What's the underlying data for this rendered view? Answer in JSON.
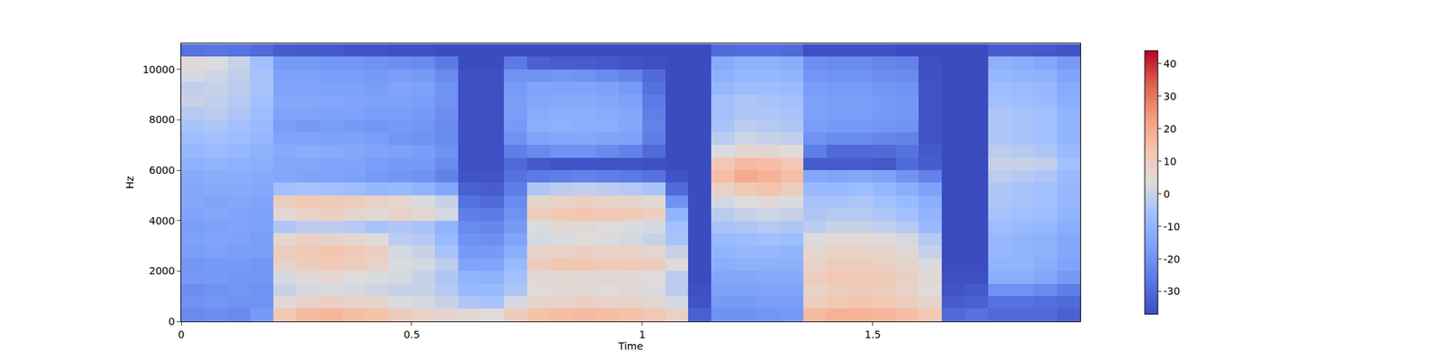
{
  "chart_data": {
    "type": "heatmap",
    "x_label": "Time",
    "y_label": "Hz",
    "xlim": [
      0,
      1.95
    ],
    "ylim": [
      0,
      11025
    ],
    "xticks": [
      0,
      0.5,
      1,
      1.5
    ],
    "yticks": [
      0,
      2000,
      4000,
      6000,
      8000,
      10000
    ],
    "x": [
      0.025,
      0.075,
      0.125,
      0.175,
      0.225,
      0.275,
      0.325,
      0.375,
      0.425,
      0.475,
      0.525,
      0.575,
      0.625,
      0.675,
      0.725,
      0.775,
      0.825,
      0.875,
      0.925,
      0.975,
      1.025,
      1.075,
      1.125,
      1.175,
      1.225,
      1.275,
      1.325,
      1.375,
      1.425,
      1.475,
      1.525,
      1.575,
      1.625,
      1.675,
      1.725,
      1.775,
      1.825,
      1.875,
      1.925
    ],
    "y": [
      250,
      750,
      1250,
      1750,
      2250,
      2750,
      3250,
      3750,
      4250,
      4750,
      5250,
      5750,
      6250,
      6750,
      7250,
      7750,
      8250,
      8750,
      9250,
      9750,
      10250,
      10750
    ],
    "cells": [
      [
        -22,
        -20,
        -21,
        -18,
        -19,
        -17,
        -16,
        -17,
        -15,
        -14,
        -14,
        -13,
        -11,
        -9,
        -7,
        -5,
        -3,
        0,
        -1,
        2,
        5,
        -28
      ],
      [
        -21,
        -19,
        -20,
        -18,
        -18,
        -16,
        -15,
        -16,
        -14,
        -15,
        -13,
        -12,
        -10,
        -8,
        -6,
        -4,
        -2,
        -1,
        0,
        1,
        3,
        -27
      ],
      [
        -22,
        -20,
        -19,
        -19,
        -18,
        -17,
        -16,
        -15,
        -15,
        -14,
        -13,
        -12,
        -11,
        -9,
        -7,
        -6,
        -4,
        -3,
        -2,
        -1,
        0,
        -28
      ],
      [
        -18,
        -20,
        -20,
        -19,
        -19,
        -17,
        -17,
        -16,
        -16,
        -15,
        -14,
        -13,
        -12,
        -11,
        -9,
        -8,
        -7,
        -6,
        -5,
        -5,
        -6,
        -30
      ],
      [
        12,
        5,
        0,
        2,
        8,
        10,
        6,
        -4,
        5,
        10,
        -6,
        -14,
        -14,
        -13,
        -15,
        -17,
        -15,
        -14,
        -15,
        -16,
        -18,
        -33
      ],
      [
        16,
        8,
        2,
        5,
        10,
        12,
        8,
        -2,
        8,
        12,
        -5,
        -15,
        -14,
        -12,
        -15,
        -18,
        -15,
        -14,
        -15,
        -16,
        -18,
        -34
      ],
      [
        17,
        9,
        3,
        6,
        11,
        13,
        7,
        -2,
        9,
        11,
        -6,
        -15,
        -15,
        -13,
        -16,
        -17,
        -16,
        -14,
        -16,
        -17,
        -19,
        -34
      ],
      [
        15,
        8,
        2,
        4,
        10,
        11,
        6,
        -3,
        7,
        10,
        -7,
        -16,
        -15,
        -14,
        -16,
        -18,
        -16,
        -15,
        -16,
        -17,
        -19,
        -35
      ],
      [
        14,
        7,
        1,
        3,
        8,
        9,
        4,
        -5,
        5,
        8,
        -9,
        -18,
        -17,
        -15,
        -17,
        -19,
        -17,
        -16,
        -17,
        -18,
        -20,
        -35
      ],
      [
        10,
        3,
        0,
        2,
        3,
        2,
        -2,
        -4,
        8,
        6,
        -8,
        -19,
        -18,
        -16,
        -19,
        -18,
        -17,
        -16,
        -15,
        -17,
        -21,
        -36
      ],
      [
        8,
        2,
        0,
        0,
        2,
        0,
        -3,
        -5,
        6,
        3,
        -10,
        -20,
        -18,
        -17,
        -20,
        -19,
        -18,
        -17,
        -16,
        -18,
        -22,
        -36
      ],
      [
        6,
        0,
        -3,
        -4,
        -2,
        -5,
        -8,
        -10,
        2,
        0,
        -14,
        -24,
        -22,
        -20,
        -22,
        -22,
        -21,
        -20,
        -20,
        -22,
        -26,
        -37
      ],
      [
        5,
        -4,
        -8,
        -10,
        -15,
        -18,
        -20,
        -22,
        -25,
        -28,
        -32,
        -35,
        -36,
        -36,
        -36,
        -36,
        -36,
        -36,
        -36,
        -36,
        -37,
        -37
      ],
      [
        4,
        -5,
        -8,
        -11,
        -15,
        -18,
        -21,
        -23,
        -26,
        -30,
        -33,
        -35,
        -36,
        -36,
        -36,
        -36,
        -36,
        -36,
        -36,
        -36,
        -37,
        -37
      ],
      [
        10,
        2,
        -4,
        -6,
        -8,
        -12,
        -15,
        -18,
        -20,
        -22,
        -25,
        -28,
        -30,
        -25,
        -20,
        -18,
        -17,
        -17,
        -18,
        -20,
        -26,
        -37
      ],
      [
        14,
        7,
        4,
        5,
        10,
        7,
        2,
        3,
        10,
        7,
        -4,
        -26,
        -34,
        -22,
        -15,
        -12,
        -13,
        -14,
        -15,
        -20,
        -32,
        -37
      ],
      [
        15,
        8,
        5,
        6,
        12,
        8,
        3,
        5,
        12,
        8,
        -2,
        -25,
        -35,
        -20,
        -14,
        -11,
        -12,
        -13,
        -15,
        -19,
        -33,
        -37
      ],
      [
        16,
        9,
        5,
        5,
        12,
        9,
        4,
        5,
        13,
        9,
        -1,
        -24,
        -35,
        -20,
        -14,
        -12,
        -12,
        -13,
        -15,
        -20,
        -33,
        -37
      ],
      [
        15,
        8,
        4,
        6,
        11,
        8,
        3,
        4,
        12,
        8,
        -2,
        -25,
        -35,
        -22,
        -15,
        -12,
        -13,
        -14,
        -16,
        -22,
        -34,
        -37
      ],
      [
        14,
        8,
        5,
        5,
        11,
        8,
        2,
        3,
        11,
        7,
        -3,
        -26,
        -35,
        -24,
        -16,
        -14,
        -14,
        -16,
        -18,
        -24,
        -35,
        -37
      ],
      [
        12,
        6,
        3,
        4,
        10,
        6,
        0,
        2,
        9,
        5,
        -5,
        -28,
        -36,
        -30,
        -25,
        -24,
        -25,
        -26,
        -28,
        -30,
        -36,
        -37
      ],
      [
        8,
        2,
        -2,
        -2,
        4,
        0,
        -5,
        -6,
        -10,
        -20,
        -30,
        -35,
        -37,
        -37,
        -37,
        -37,
        -37,
        -37,
        -37,
        -37,
        -37,
        -37
      ],
      [
        -32,
        -35,
        -36,
        -37,
        -37,
        -37,
        -37,
        -37,
        -37,
        -37,
        -37,
        -37,
        -37,
        -37,
        -37,
        -37,
        -37,
        -37,
        -37,
        -37,
        -37,
        -37
      ],
      [
        -20,
        -18,
        -16,
        -14,
        -12,
        -10,
        -8,
        -5,
        -2,
        2,
        8,
        15,
        12,
        3,
        -2,
        -5,
        -6,
        -6,
        -9,
        -11,
        -13,
        -30
      ],
      [
        -20,
        -18,
        -16,
        -14,
        -11,
        -9,
        -7,
        -4,
        0,
        4,
        12,
        20,
        16,
        6,
        1,
        -2,
        -4,
        -4,
        -7,
        -9,
        -11,
        -29
      ],
      [
        -19,
        -17,
        -15,
        -13,
        -11,
        -9,
        -6,
        -3,
        1,
        5,
        14,
        18,
        15,
        6,
        0,
        -3,
        -4,
        -5,
        -7,
        -9,
        -11,
        -29
      ],
      [
        -18,
        -17,
        -15,
        -13,
        -11,
        -10,
        -7,
        -4,
        0,
        3,
        10,
        15,
        12,
        4,
        -1,
        -4,
        -5,
        -6,
        -8,
        -10,
        -12,
        -30
      ],
      [
        16,
        10,
        8,
        10,
        8,
        6,
        3,
        -2,
        -4,
        -5,
        -8,
        -14,
        -33,
        -25,
        -20,
        -17,
        -16,
        -16,
        -17,
        -19,
        -21,
        -36
      ],
      [
        18,
        12,
        10,
        12,
        10,
        8,
        5,
        0,
        -3,
        -5,
        -8,
        -15,
        -33,
        -30,
        -22,
        -18,
        -17,
        -17,
        -18,
        -20,
        -22,
        -36
      ],
      [
        18,
        13,
        11,
        12,
        10,
        8,
        5,
        0,
        -3,
        -4,
        -7,
        -14,
        -33,
        -30,
        -22,
        -18,
        -17,
        -17,
        -18,
        -20,
        -22,
        -36
      ],
      [
        17,
        12,
        10,
        11,
        9,
        7,
        4,
        -1,
        -4,
        -6,
        -9,
        -16,
        -34,
        -30,
        -23,
        -19,
        -18,
        -18,
        -19,
        -21,
        -23,
        -36
      ],
      [
        15,
        10,
        8,
        9,
        7,
        5,
        2,
        -3,
        -6,
        -8,
        -12,
        -20,
        -30,
        -28,
        -24,
        -20,
        -19,
        -19,
        -20,
        -22,
        -24,
        -37
      ],
      [
        12,
        7,
        4,
        5,
        3,
        0,
        -3,
        -8,
        -10,
        -12,
        -16,
        -24,
        -33,
        -34,
        -35,
        -35,
        -35,
        -35,
        -35,
        -36,
        -36,
        -37
      ],
      [
        -30,
        -33,
        -35,
        -36,
        -37,
        -37,
        -37,
        -37,
        -37,
        -37,
        -37,
        -37,
        -37,
        -37,
        -37,
        -37,
        -37,
        -37,
        -37,
        -37,
        -37,
        -37
      ],
      [
        -28,
        -32,
        -34,
        -36,
        -37,
        -37,
        -37,
        -37,
        -37,
        -37,
        -37,
        -37,
        -37,
        -37,
        -37,
        -37,
        -37,
        -37,
        -37,
        -37,
        -37,
        -37
      ],
      [
        -30,
        -28,
        -20,
        -12,
        -10,
        -9,
        -9,
        -7,
        -5,
        -4,
        -4,
        -2,
        0,
        -2,
        -4,
        -4,
        -4,
        -6,
        -7,
        -9,
        -11,
        -33
      ],
      [
        -30,
        -28,
        -20,
        -12,
        -10,
        -10,
        -10,
        -8,
        -6,
        -5,
        -5,
        -3,
        0,
        -3,
        -5,
        -5,
        -5,
        -7,
        -8,
        -10,
        -12,
        -33
      ],
      [
        -30,
        -29,
        -22,
        -14,
        -12,
        -11,
        -11,
        -9,
        -7,
        -6,
        -6,
        -4,
        -1,
        -4,
        -6,
        -6,
        -6,
        -8,
        -9,
        -11,
        -14,
        -34
      ],
      [
        -32,
        -30,
        -25,
        -18,
        -15,
        -14,
        -14,
        -12,
        -10,
        -9,
        -9,
        -8,
        -6,
        -8,
        -10,
        -10,
        -10,
        -12,
        -13,
        -15,
        -18,
        -35
      ]
    ],
    "colorbar": {
      "range": [
        -37,
        44
      ],
      "ticks": [
        -30,
        -20,
        -10,
        0,
        10,
        20,
        30,
        40
      ]
    }
  }
}
